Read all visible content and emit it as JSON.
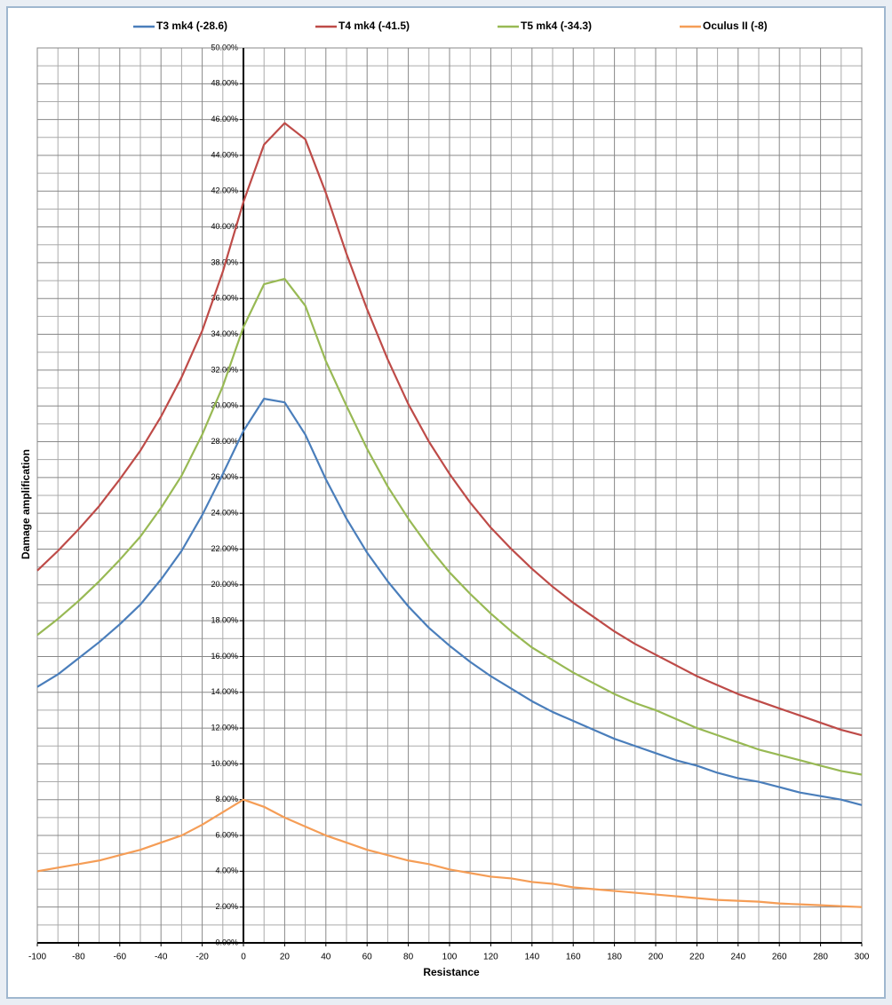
{
  "chart_data": {
    "type": "line",
    "x": [
      -100,
      -90,
      -80,
      -70,
      -60,
      -50,
      -40,
      -30,
      -20,
      -10,
      0,
      10,
      20,
      30,
      40,
      50,
      60,
      70,
      80,
      90,
      100,
      110,
      120,
      130,
      140,
      150,
      160,
      170,
      180,
      190,
      200,
      210,
      220,
      230,
      240,
      250,
      260,
      270,
      280,
      290,
      300
    ],
    "series": [
      {
        "name": "T3 mk4 (-28.6)",
        "color": "#4a7ebb",
        "values": [
          14.3,
          15.0,
          15.9,
          16.8,
          17.8,
          18.9,
          20.3,
          21.9,
          23.9,
          26.2,
          28.6,
          30.4,
          30.2,
          28.4,
          25.9,
          23.7,
          21.8,
          20.2,
          18.8,
          17.6,
          16.6,
          15.7,
          14.9,
          14.2,
          13.5,
          12.9,
          12.4,
          11.9,
          11.4,
          11.0,
          10.6,
          10.2,
          9.9,
          9.5,
          9.2,
          9.0,
          8.7,
          8.4,
          8.2,
          8.0,
          7.7
        ]
      },
      {
        "name": "T4 mk4 (-41.5)",
        "color": "#be4b48",
        "values": [
          20.8,
          21.9,
          23.1,
          24.4,
          25.9,
          27.5,
          29.4,
          31.6,
          34.2,
          37.5,
          41.4,
          44.6,
          45.8,
          44.9,
          41.9,
          38.5,
          35.4,
          32.6,
          30.1,
          28.0,
          26.2,
          24.6,
          23.2,
          22.0,
          20.9,
          19.9,
          19.0,
          18.2,
          17.4,
          16.7,
          16.1,
          15.5,
          14.9,
          14.4,
          13.9,
          13.5,
          13.1,
          12.7,
          12.3,
          11.9,
          11.6
        ]
      },
      {
        "name": "T5 mk4 (-34.3)",
        "color": "#98b954",
        "values": [
          17.2,
          18.1,
          19.1,
          20.2,
          21.4,
          22.7,
          24.3,
          26.1,
          28.4,
          31.1,
          34.4,
          36.8,
          37.1,
          35.6,
          32.5,
          30.0,
          27.6,
          25.5,
          23.7,
          22.1,
          20.7,
          19.5,
          18.4,
          17.4,
          16.5,
          15.8,
          15.1,
          14.5,
          13.9,
          13.4,
          13.0,
          12.5,
          12.0,
          11.6,
          11.2,
          10.8,
          10.5,
          10.2,
          9.9,
          9.6,
          9.4
        ]
      },
      {
        "name": "Oculus II (-8)",
        "color": "#f59d56",
        "values": [
          4.0,
          4.2,
          4.4,
          4.6,
          4.9,
          5.2,
          5.6,
          6.0,
          6.6,
          7.3,
          8.0,
          7.6,
          7.0,
          6.5,
          6.0,
          5.6,
          5.2,
          4.9,
          4.6,
          4.4,
          4.1,
          3.9,
          3.7,
          3.6,
          3.4,
          3.3,
          3.1,
          3.0,
          2.9,
          2.8,
          2.7,
          2.6,
          2.5,
          2.4,
          2.35,
          2.3,
          2.2,
          2.15,
          2.1,
          2.05,
          2.0
        ]
      }
    ],
    "x_label": "Resistance",
    "y_label": "Damage amplification",
    "xlim": [
      -100,
      300
    ],
    "xticks": [
      -100,
      -80,
      -60,
      -40,
      -20,
      0,
      20,
      40,
      60,
      80,
      100,
      120,
      140,
      160,
      180,
      200,
      220,
      240,
      260,
      280,
      300
    ],
    "ylim": [
      0,
      50
    ],
    "yticks": [
      {
        "value": 0,
        "label": "0.00%"
      },
      {
        "value": 2,
        "label": "2.00%"
      },
      {
        "value": 4,
        "label": "4.00%"
      },
      {
        "value": 6,
        "label": "6.00%"
      },
      {
        "value": 8,
        "label": "8.00%"
      },
      {
        "value": 10,
        "label": "10.00%"
      },
      {
        "value": 12,
        "label": "12.00%"
      },
      {
        "value": 14,
        "label": "14.00%"
      },
      {
        "value": 16,
        "label": "16.00%"
      },
      {
        "value": 18,
        "label": "18.00%"
      },
      {
        "value": 20,
        "label": "20.00%"
      },
      {
        "value": 22,
        "label": "22.00%"
      },
      {
        "value": 24,
        "label": "24.00%"
      },
      {
        "value": 26,
        "label": "26.00%"
      },
      {
        "value": 28,
        "label": "28.00%"
      },
      {
        "value": 30,
        "label": "30.00%"
      },
      {
        "value": 32,
        "label": "32.00%"
      },
      {
        "value": 34,
        "label": "34.00%"
      },
      {
        "value": 36,
        "label": "36.00%"
      },
      {
        "value": 38,
        "label": "38.00%"
      },
      {
        "value": 40,
        "label": "40.00%"
      },
      {
        "value": 42,
        "label": "42.00%"
      },
      {
        "value": 44,
        "label": "44.00%"
      },
      {
        "value": 46,
        "label": "46.00%"
      },
      {
        "value": 48,
        "label": "48.00%"
      },
      {
        "value": 50,
        "label": "50.00%"
      }
    ],
    "grid": true,
    "minor_grid": true,
    "legend": "top"
  }
}
